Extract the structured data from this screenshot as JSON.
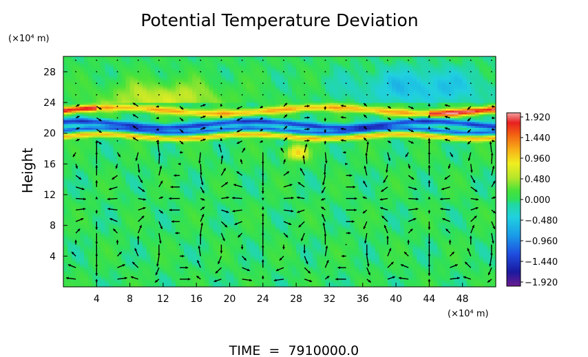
{
  "chart_data": {
    "type": "heatmap",
    "title": "Potential Temperature Deviation",
    "ylabel": "Height",
    "y_unit_label": "(×10⁴ m)",
    "x_unit_label": "(×10⁴ m)",
    "footer": "TIME  =  7910000.0",
    "xlim": [
      0,
      52
    ],
    "ylim": [
      0,
      30
    ],
    "x_ticks": [
      4,
      8,
      12,
      16,
      20,
      24,
      28,
      32,
      36,
      40,
      44,
      48
    ],
    "y_ticks": [
      4,
      8,
      12,
      16,
      20,
      24,
      28
    ],
    "colorbar": {
      "range": [
        -1.92,
        1.92
      ],
      "tick_values": [
        1.92,
        1.44,
        0.96,
        0.48,
        0.0,
        -0.48,
        -0.96,
        -1.44,
        -1.92
      ],
      "tick_labels": [
        "1.920",
        "1.440",
        "0.960",
        "0.480",
        "0.000",
        "−0.480",
        "−0.960",
        "−1.440",
        "−1.920"
      ],
      "stops": [
        {
          "v": -1.92,
          "c": "#6a1b8f"
        },
        {
          "v": -1.6,
          "c": "#1a1aa0"
        },
        {
          "v": -1.2,
          "c": "#1f4fe0"
        },
        {
          "v": -0.8,
          "c": "#1a9be8"
        },
        {
          "v": -0.4,
          "c": "#20d0e0"
        },
        {
          "v": -0.1,
          "c": "#22d8a0"
        },
        {
          "v": 0.0,
          "c": "#2ee05a"
        },
        {
          "v": 0.2,
          "c": "#48e23a"
        },
        {
          "v": 0.48,
          "c": "#b5e62a"
        },
        {
          "v": 0.8,
          "c": "#f0ee20"
        },
        {
          "v": 1.1,
          "c": "#f8b018"
        },
        {
          "v": 1.44,
          "c": "#f26012"
        },
        {
          "v": 1.7,
          "c": "#e82020"
        },
        {
          "v": 1.92,
          "c": "#f2a0a0"
        }
      ]
    },
    "field_description_values": {
      "background_value": 0.02,
      "upper_band_height": 23,
      "lower_band_height": 19.6
    }
  }
}
